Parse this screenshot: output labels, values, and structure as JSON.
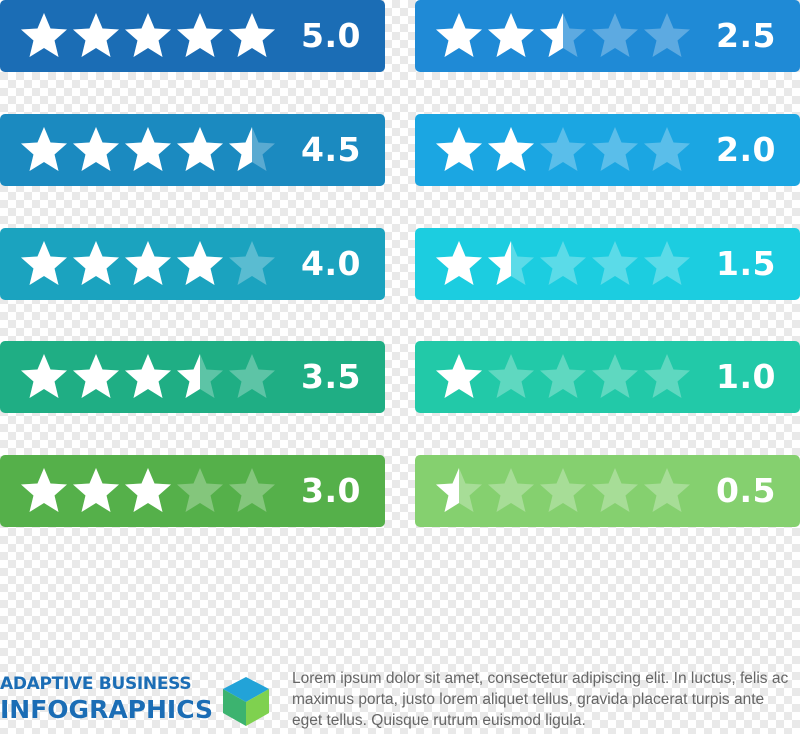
{
  "ratings": [
    {
      "label": "5.0",
      "value": 5.0,
      "color": "#1b6db5"
    },
    {
      "label": "4.5",
      "value": 4.5,
      "color": "#1b8ac0"
    },
    {
      "label": "4.0",
      "value": 4.0,
      "color": "#1ba3bf"
    },
    {
      "label": "3.5",
      "value": 3.5,
      "color": "#1fae84"
    },
    {
      "label": "3.0",
      "value": 3.0,
      "color": "#55b04a"
    },
    {
      "label": "2.5",
      "value": 2.5,
      "color": "#1f8ad6"
    },
    {
      "label": "2.0",
      "value": 2.0,
      "color": "#1ba6e2"
    },
    {
      "label": "1.5",
      "value": 1.5,
      "color": "#1ccde0"
    },
    {
      "label": "1.0",
      "value": 1.0,
      "color": "#22c9a8"
    },
    {
      "label": "0.5",
      "value": 0.5,
      "color": "#85d06f"
    }
  ],
  "max_stars": 5,
  "star_icon": "star-icon",
  "footer": {
    "title_line1": "ADAPTIVE BUSINESS",
    "title_line2": "INFOGRAPHICS",
    "title_color": "#1b6db5",
    "icon": "cube-icon",
    "cube_colors": {
      "top": "#22a3d8",
      "left": "#3cb36f",
      "right": "#7fd14f"
    },
    "body": "Lorem ipsum dolor sit amet, consectetur adipiscing elit. In luctus, felis ac maximus porta, justo lorem aliquet tellus, gravida placerat turpis ante eget tellus. Quisque rutrum euismod ligula."
  }
}
